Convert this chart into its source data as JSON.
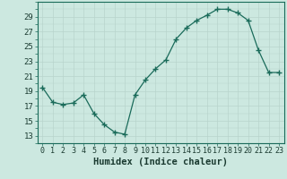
{
  "x": [
    0,
    1,
    2,
    3,
    4,
    5,
    6,
    7,
    8,
    9,
    10,
    11,
    12,
    13,
    14,
    15,
    16,
    17,
    18,
    19,
    20,
    21,
    22,
    23
  ],
  "y": [
    19.5,
    17.5,
    17.2,
    17.4,
    18.5,
    16.0,
    14.5,
    13.5,
    13.2,
    18.5,
    20.5,
    22.0,
    23.2,
    26.0,
    27.5,
    28.5,
    29.2,
    30.0,
    30.0,
    29.5,
    28.5,
    24.5,
    21.5,
    21.5
  ],
  "xlabel": "Humidex (Indice chaleur)",
  "ylim": [
    12,
    31
  ],
  "xlim": [
    -0.5,
    23.5
  ],
  "yticks": [
    13,
    15,
    17,
    19,
    21,
    23,
    25,
    27,
    29
  ],
  "xticks": [
    0,
    1,
    2,
    3,
    4,
    5,
    6,
    7,
    8,
    9,
    10,
    11,
    12,
    13,
    14,
    15,
    16,
    17,
    18,
    19,
    20,
    21,
    22,
    23
  ],
  "xtick_labels": [
    "0",
    "1",
    "2",
    "3",
    "4",
    "5",
    "6",
    "7",
    "8",
    "9",
    "10",
    "11",
    "12",
    "13",
    "14",
    "15",
    "16",
    "17",
    "18",
    "19",
    "20",
    "21",
    "22",
    "23"
  ],
  "line_color": "#1a6b5a",
  "marker_color": "#1a6b5a",
  "bg_color": "#cce8e0",
  "grid_color_major": "#b8d4cc",
  "grid_color_minor": "#d4e8e2",
  "axis_color": "#1a6b5a",
  "xlabel_fontsize": 7.5,
  "ytick_fontsize": 6.5,
  "xtick_fontsize": 6.0
}
